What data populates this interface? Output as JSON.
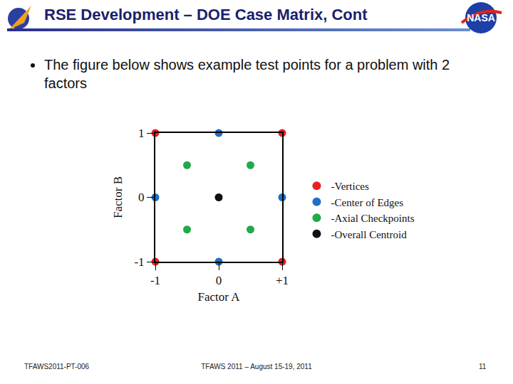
{
  "header": {
    "title": "RSE Development – DOE Case Matrix, Cont",
    "logo_text": "NASA"
  },
  "bullets": [
    "The figure below shows example test points for a problem with 2 factors"
  ],
  "footer": {
    "left": "TFAWS2011-PT-006",
    "center": "TFAWS 2011 – August 15-19, 2011",
    "right": "11"
  },
  "chart_data": {
    "type": "scatter",
    "x_label": "Factor A",
    "y_label": "Factor B",
    "xlim": [
      -1,
      1
    ],
    "ylim": [
      -1,
      1
    ],
    "xticks": [
      -1,
      0,
      {
        "value": 1,
        "label": "+1"
      }
    ],
    "yticks": [
      -1,
      0,
      1
    ],
    "grid": false,
    "legend": "right",
    "series": [
      {
        "name": "-Vertices",
        "color": "#e8201e",
        "marker": "circle",
        "x": [
          -1,
          1,
          -1,
          1
        ],
        "y": [
          1,
          1,
          -1,
          -1
        ]
      },
      {
        "name": "-Center of Edges",
        "color": "#1f6fc5",
        "marker": "circle",
        "x": [
          0,
          -1,
          1,
          0
        ],
        "y": [
          1,
          0,
          0,
          -1
        ]
      },
      {
        "name": "-Axial Checkpoints",
        "color": "#22a94a",
        "marker": "circle",
        "x": [
          -0.5,
          0.5,
          -0.5,
          0.5
        ],
        "y": [
          0.5,
          0.5,
          -0.5,
          -0.5
        ]
      },
      {
        "name": "-Overall Centroid",
        "color": "#111111",
        "marker": "circle",
        "x": [
          0
        ],
        "y": [
          0
        ]
      }
    ]
  }
}
